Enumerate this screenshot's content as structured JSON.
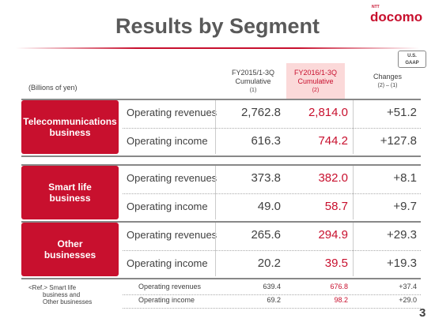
{
  "header": {
    "title": "Results by Segment",
    "logo_prefix": "NTT",
    "logo": "docomo",
    "page_number": "3"
  },
  "badge": [
    "U.S.",
    "GAAP"
  ],
  "table": {
    "unit": "(Billions of yen)",
    "columns": [
      [
        "FY2015/1-3Q",
        "Cumulative",
        "(1)"
      ],
      [
        "FY2016/1-3Q",
        "Cumulative",
        "(2)"
      ],
      [
        "Changes",
        "(2) – (1)"
      ]
    ],
    "segments": [
      {
        "name": [
          "Telecommunications",
          "business"
        ],
        "rows": [
          [
            "Operating revenues",
            "2,762.8",
            "2,814.0",
            "+51.2"
          ],
          [
            "Operating income",
            "616.3",
            "744.2",
            "+127.8"
          ]
        ]
      },
      {
        "name": [
          "Smart life",
          "business"
        ],
        "rows": [
          [
            "Operating revenues",
            "373.8",
            "382.0",
            "+8.1"
          ],
          [
            "Operating income",
            "49.0",
            "58.7",
            "+9.7"
          ]
        ]
      },
      {
        "name": [
          "Other",
          "businesses"
        ],
        "rows": [
          [
            "Operating revenues",
            "265.6",
            "294.9",
            "+29.3"
          ],
          [
            "Operating income",
            "20.2",
            "39.5",
            "+19.3"
          ]
        ]
      }
    ],
    "reference": {
      "name": [
        "<Ref.> Smart life",
        "business and",
        "Other businesses"
      ],
      "rows": [
        [
          "Operating revenues",
          "639.4",
          "676.8",
          "+37.4"
        ],
        [
          "Operating income",
          "69.2",
          "98.2",
          "+29.0"
        ]
      ]
    }
  }
}
